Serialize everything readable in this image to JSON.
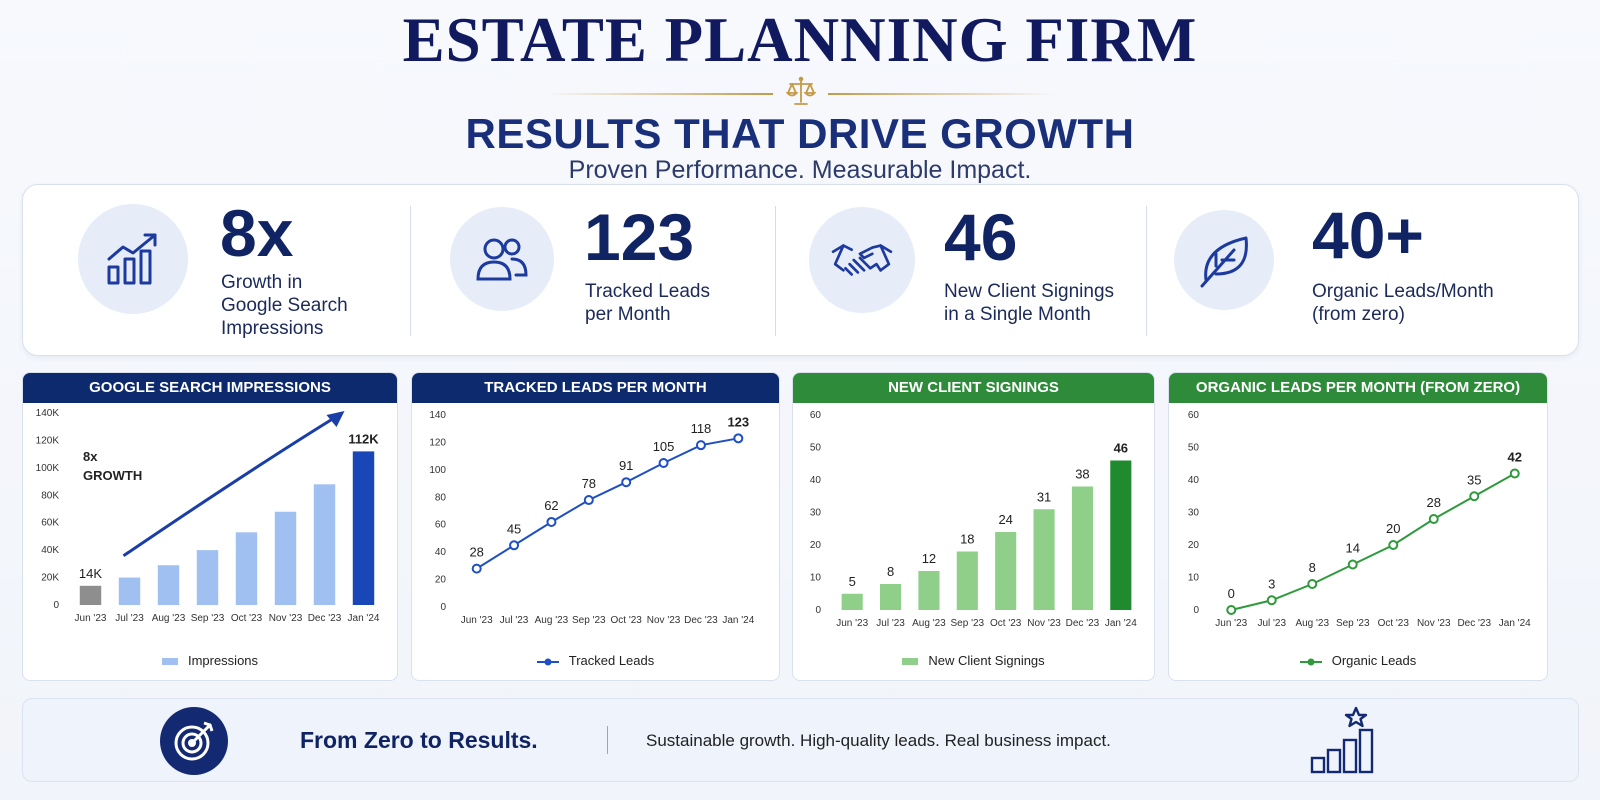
{
  "header": {
    "firm_name": "ESTATE PLANNING FIRM",
    "headline": "RESULTS THAT DRIVE GROWTH",
    "tagline": "Proven Performance. Measurable Impact.",
    "divider_icon": "scales-of-justice-icon"
  },
  "kpis": [
    {
      "value": "8x",
      "label": "Growth in\nGoogle Search\nImpressions",
      "icon": "growth-chart-icon"
    },
    {
      "value": "123",
      "label": "Tracked Leads\nper Month",
      "icon": "users-icon"
    },
    {
      "value": "46",
      "label": "New Client Signings\nin a Single Month",
      "icon": "handshake-icon"
    },
    {
      "value": "40+",
      "label": "Organic Leads/Month\n(from zero)",
      "icon": "leaf-icon"
    }
  ],
  "colors": {
    "navy": "#0d2a6e",
    "green": "#2e8b3a",
    "light_blue_bar": "#9fc0f0",
    "dark_blue_bar": "#1a47b8",
    "gray_bar": "#8e8e8e",
    "line_blue": "#1f4fc4",
    "light_green_bar": "#8fcf8a",
    "dark_green_bar": "#1f8a2e",
    "line_green": "#2e9a3b"
  },
  "chart_data": [
    {
      "type": "bar",
      "title": "GOOGLE SEARCH IMPRESSIONS",
      "categories": [
        "Jun '23",
        "Jul '23",
        "Aug '23",
        "Sep '23",
        "Oct '23",
        "Nov '23",
        "Dec '23",
        "Jan '24"
      ],
      "series": [
        {
          "name": "Impressions",
          "values": [
            14000,
            20000,
            29000,
            40000,
            53000,
            68000,
            88000,
            112000
          ]
        }
      ],
      "ylim": [
        0,
        140000
      ],
      "yticks": [
        "0",
        "20K",
        "40K",
        "60K",
        "80K",
        "100K",
        "120K",
        "140K"
      ],
      "data_labels": {
        "first": "14K",
        "last": "112K"
      },
      "annotation": {
        "value": "8x",
        "text": "GROWTH"
      },
      "grid": false,
      "legend": "bottom-center"
    },
    {
      "type": "line",
      "title": "TRACKED LEADS PER MONTH",
      "categories": [
        "Jun '23",
        "Jul '23",
        "Aug '23",
        "Sep '23",
        "Oct '23",
        "Nov '23",
        "Dec '23",
        "Jan '24"
      ],
      "series": [
        {
          "name": "Tracked Leads",
          "values": [
            28,
            45,
            62,
            78,
            91,
            105,
            118,
            123
          ]
        }
      ],
      "ylim": [
        0,
        140
      ],
      "yticks": [
        "0",
        "20",
        "40",
        "60",
        "80",
        "100",
        "120",
        "140"
      ],
      "grid": false,
      "legend": "bottom-center"
    },
    {
      "type": "bar",
      "title": "NEW CLIENT SIGNINGS",
      "categories": [
        "Jun '23",
        "Jul '23",
        "Aug '23",
        "Sep '23",
        "Oct '23",
        "Nov '23",
        "Dec '23",
        "Jan '24"
      ],
      "series": [
        {
          "name": "New Client Signings",
          "values": [
            5,
            8,
            12,
            18,
            24,
            31,
            38,
            46
          ]
        }
      ],
      "ylim": [
        0,
        60
      ],
      "yticks": [
        "0",
        "10",
        "20",
        "30",
        "40",
        "50",
        "60"
      ],
      "grid": false,
      "legend": "bottom-center"
    },
    {
      "type": "line",
      "title": "ORGANIC LEADS PER MONTH (FROM ZERO)",
      "categories": [
        "Jun '23",
        "Jul '23",
        "Aug '23",
        "Sep '23",
        "Oct '23",
        "Nov '23",
        "Dec '23",
        "Jan '24"
      ],
      "series": [
        {
          "name": "Organic Leads",
          "values": [
            0,
            3,
            8,
            14,
            20,
            28,
            35,
            42
          ]
        }
      ],
      "ylim": [
        0,
        60
      ],
      "yticks": [
        "0",
        "10",
        "20",
        "30",
        "40",
        "50",
        "60"
      ],
      "grid": false,
      "legend": "bottom-center"
    }
  ],
  "footer": {
    "title": "From Zero to Results.",
    "text": "Sustainable growth. High-quality leads. Real business impact.",
    "left_icon": "target-icon",
    "right_icon": "bar-chart-star-icon"
  }
}
